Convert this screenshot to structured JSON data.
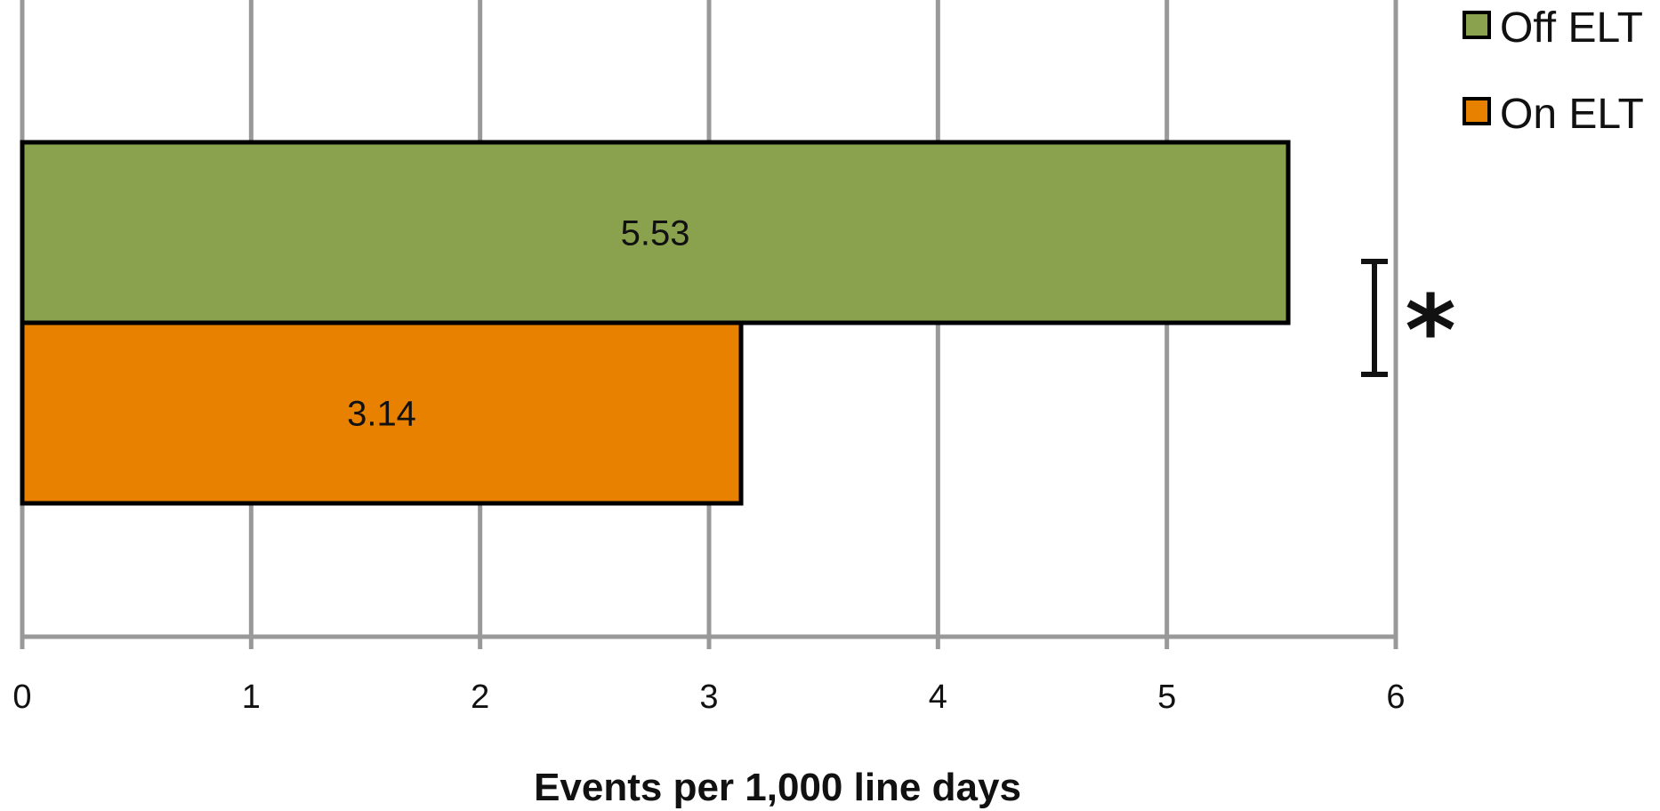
{
  "chart_data": {
    "type": "bar",
    "orientation": "horizontal",
    "xlabel": "Events per 1,000 line days",
    "xlim": [
      0,
      6
    ],
    "xticks": [
      "0",
      "1",
      "2",
      "3",
      "4",
      "5",
      "6"
    ],
    "grid": true,
    "legend_position": "top-right",
    "series": [
      {
        "name": "Off ELT",
        "value": 5.53,
        "label": "5.53",
        "color": "#8aa24e"
      },
      {
        "name": "On ELT",
        "value": 3.14,
        "label": "3.14",
        "color": "#e98100"
      }
    ],
    "significance_marker": "*",
    "gridline_color": "#999999",
    "outline_color": "#000000"
  }
}
